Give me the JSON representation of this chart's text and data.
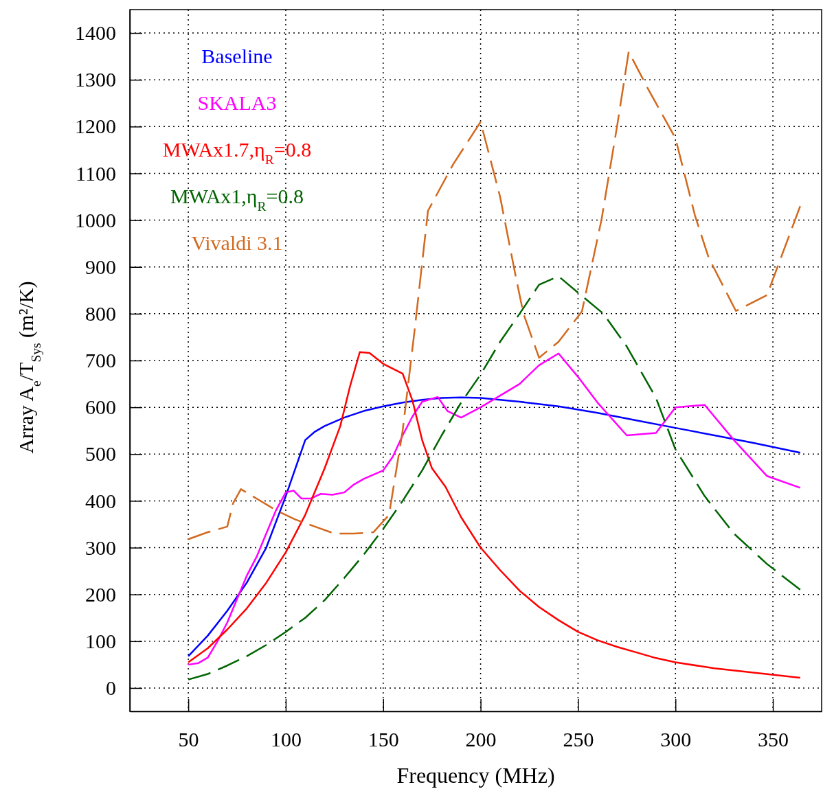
{
  "chart_data": {
    "type": "line",
    "xlabel": "Frequency (MHz)",
    "ylabel": "Array A$_{e}$/T$_{Sys}$ (m²/K)",
    "xlim": [
      20,
      375
    ],
    "ylim": [
      -50,
      1450
    ],
    "xticks": [
      50,
      100,
      150,
      200,
      250,
      300,
      350
    ],
    "yticks": [
      0,
      100,
      200,
      300,
      400,
      500,
      600,
      700,
      800,
      900,
      1000,
      1100,
      1200,
      1300,
      1400
    ],
    "grid": true,
    "legend": "top left",
    "series": [
      {
        "name": "Baseline",
        "color": "#0000ff",
        "line_style": "solid",
        "x": [
          50,
          60,
          70,
          80,
          90,
          100,
          110,
          115,
          120,
          130,
          140,
          150,
          160,
          170,
          180,
          190,
          200,
          220,
          240,
          260,
          280,
          300,
          320,
          340,
          364
        ],
        "values": [
          68,
          112,
          165,
          225,
          300,
          410,
          530,
          548,
          560,
          578,
          592,
          602,
          610,
          616,
          620,
          621,
          620,
          612,
          602,
          588,
          572,
          556,
          540,
          524,
          503
        ]
      },
      {
        "name": "SKALA3",
        "color": "#ff00ff",
        "line_style": "solid",
        "x": [
          50,
          55,
          60,
          65,
          70,
          75,
          80,
          85,
          90,
          95,
          100,
          104,
          108,
          113,
          118,
          124,
          130,
          135,
          140,
          150,
          155,
          160,
          165,
          170,
          178,
          183,
          190,
          200,
          210,
          220,
          230,
          240,
          250,
          260,
          275,
          290,
          300,
          315,
          330,
          347,
          364
        ],
        "values": [
          50,
          53,
          65,
          100,
          140,
          190,
          240,
          280,
          330,
          380,
          418,
          422,
          405,
          405,
          415,
          413,
          418,
          435,
          447,
          465,
          495,
          540,
          580,
          612,
          622,
          592,
          578,
          600,
          625,
          650,
          690,
          715,
          665,
          610,
          540,
          545,
          600,
          605,
          530,
          453,
          428
        ]
      },
      {
        "name": "MWAx1.7,η$_{R}$=0.8",
        "color": "#ff0000",
        "line_style": "solid",
        "x": [
          50,
          60,
          70,
          80,
          90,
          100,
          110,
          120,
          128,
          133,
          138,
          143,
          150,
          160,
          165,
          170,
          175,
          182,
          190,
          200,
          210,
          220,
          230,
          240,
          250,
          260,
          270,
          280,
          290,
          300,
          320,
          340,
          364
        ],
        "values": [
          55,
          85,
          125,
          170,
          225,
          290,
          370,
          470,
          560,
          645,
          718,
          716,
          693,
          672,
          615,
          530,
          470,
          430,
          365,
          300,
          252,
          208,
          173,
          145,
          120,
          102,
          88,
          76,
          64,
          55,
          42,
          33,
          22
        ]
      },
      {
        "name": "MWAx1,η$_{R}$=0.8",
        "color": "#006400",
        "line_style": "dashed",
        "x": [
          50,
          60,
          70,
          80,
          90,
          100,
          110,
          120,
          130,
          140,
          150,
          160,
          170,
          180,
          190,
          200,
          210,
          220,
          230,
          240,
          250,
          263,
          275,
          290,
          300,
          315,
          330,
          347,
          364
        ],
        "values": [
          18,
          30,
          48,
          68,
          92,
          120,
          150,
          188,
          235,
          285,
          340,
          400,
          465,
          540,
          610,
          670,
          740,
          800,
          862,
          880,
          845,
          800,
          730,
          620,
          510,
          410,
          330,
          265,
          210
        ]
      },
      {
        "name": "Vivaldi 3.1",
        "color": "#d2691e",
        "line_style": "dashed",
        "x": [
          50,
          60,
          70,
          73,
          77,
          85,
          95,
          105,
          115,
          125,
          135,
          145,
          153,
          160,
          166,
          173,
          186,
          200,
          210,
          218,
          222,
          230,
          240,
          252,
          262,
          270,
          276,
          286,
          300,
          310,
          317,
          331,
          347,
          364
        ],
        "values": [
          318,
          333,
          345,
          395,
          425,
          405,
          380,
          360,
          345,
          330,
          330,
          333,
          370,
          550,
          760,
          1020,
          1120,
          1210,
          1050,
          880,
          800,
          706,
          740,
          805,
          1000,
          1200,
          1360,
          1280,
          1175,
          1010,
          920,
          806,
          840,
          1030
        ]
      }
    ]
  }
}
